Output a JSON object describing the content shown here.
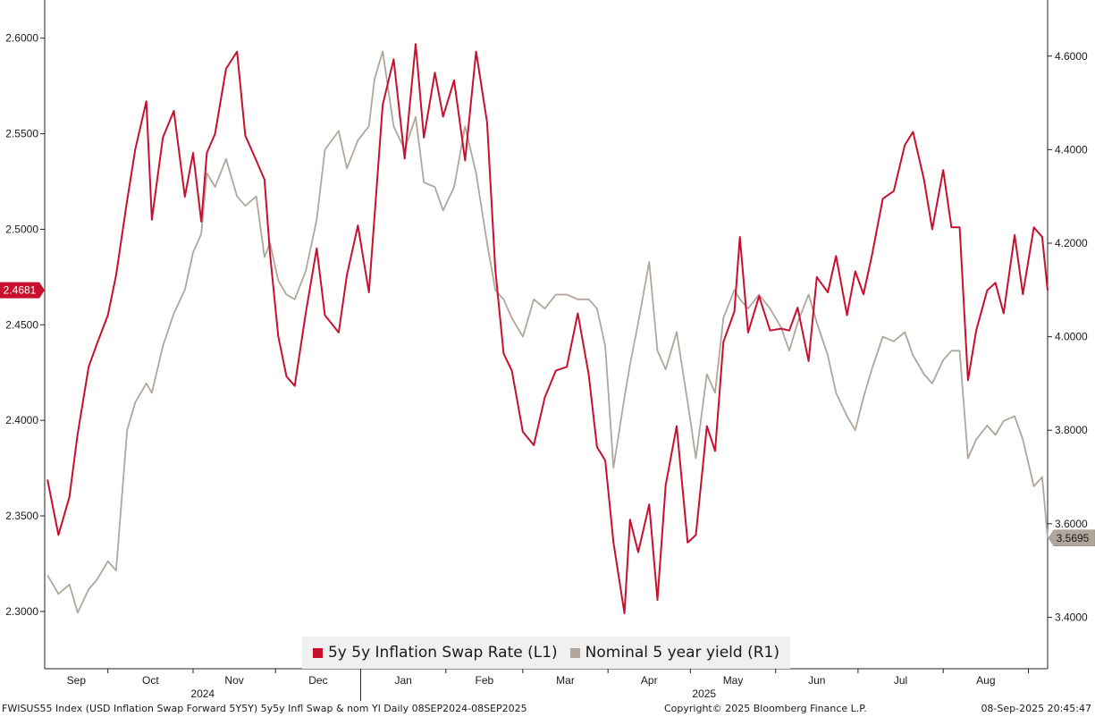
{
  "chart_data": {
    "type": "line",
    "x_range": [
      "2024-09-08",
      "2025-09-08"
    ],
    "x_month_labels": [
      "Sep",
      "Oct",
      "Nov",
      "Dec",
      "Jan",
      "Feb",
      "Mar",
      "Apr",
      "May",
      "Jun",
      "Jul",
      "Aug"
    ],
    "x_year_labels": [
      "2024",
      "2025"
    ],
    "y_left": {
      "min": 2.27,
      "max": 2.62,
      "ticks": [
        "2.6000",
        "2.5500",
        "2.5000",
        "2.4500",
        "2.4000",
        "2.3500",
        "2.3000"
      ]
    },
    "y_right": {
      "min": 3.29,
      "max": 4.72,
      "ticks": [
        "4.6000",
        "4.4000",
        "4.2000",
        "4.0000",
        "3.8000",
        "3.6000",
        "3.4000"
      ]
    },
    "series": [
      {
        "name": "5y 5y Inflation Swap Rate (L1)",
        "axis": "left",
        "color": "#c8102e",
        "last_value_label": "2.4681",
        "last_value": 2.4681,
        "points": [
          [
            "2024-09-09",
            2.369
          ],
          [
            "2024-09-13",
            2.34
          ],
          [
            "2024-09-17",
            2.36
          ],
          [
            "2024-09-20",
            2.393
          ],
          [
            "2024-09-24",
            2.428
          ],
          [
            "2024-09-27",
            2.44
          ],
          [
            "2024-10-01",
            2.455
          ],
          [
            "2024-10-04",
            2.476
          ],
          [
            "2024-10-08",
            2.515
          ],
          [
            "2024-10-11",
            2.542
          ],
          [
            "2024-10-15",
            2.567
          ],
          [
            "2024-10-17",
            2.505
          ],
          [
            "2024-10-21",
            2.548
          ],
          [
            "2024-10-25",
            2.562
          ],
          [
            "2024-10-29",
            2.517
          ],
          [
            "2024-11-01",
            2.54
          ],
          [
            "2024-11-04",
            2.504
          ],
          [
            "2024-11-06",
            2.54
          ],
          [
            "2024-11-09",
            2.55
          ],
          [
            "2024-11-13",
            2.584
          ],
          [
            "2024-11-17",
            2.593
          ],
          [
            "2024-11-20",
            2.549
          ],
          [
            "2024-11-24",
            2.536
          ],
          [
            "2024-11-27",
            2.526
          ],
          [
            "2024-11-29",
            2.487
          ],
          [
            "2024-12-02",
            2.444
          ],
          [
            "2024-12-05",
            2.423
          ],
          [
            "2024-12-08",
            2.418
          ],
          [
            "2024-12-12",
            2.456
          ],
          [
            "2024-12-16",
            2.49
          ],
          [
            "2024-12-19",
            2.455
          ],
          [
            "2024-12-24",
            2.446
          ],
          [
            "2024-12-27",
            2.476
          ],
          [
            "2024-12-31",
            2.502
          ],
          [
            "2025-01-04",
            2.467
          ],
          [
            "2025-01-06",
            2.506
          ],
          [
            "2025-01-09",
            2.565
          ],
          [
            "2025-01-13",
            2.589
          ],
          [
            "2025-01-17",
            2.537
          ],
          [
            "2025-01-21",
            2.597
          ],
          [
            "2025-01-24",
            2.548
          ],
          [
            "2025-01-28",
            2.582
          ],
          [
            "2025-01-31",
            2.559
          ],
          [
            "2025-02-04",
            2.578
          ],
          [
            "2025-02-08",
            2.536
          ],
          [
            "2025-02-12",
            2.593
          ],
          [
            "2025-02-16",
            2.556
          ],
          [
            "2025-02-19",
            2.479
          ],
          [
            "2025-02-22",
            2.435
          ],
          [
            "2025-02-25",
            2.426
          ],
          [
            "2025-03-01",
            2.394
          ],
          [
            "2025-03-05",
            2.387
          ],
          [
            "2025-03-09",
            2.412
          ],
          [
            "2025-03-13",
            2.426
          ],
          [
            "2025-03-17",
            2.428
          ],
          [
            "2025-03-21",
            2.456
          ],
          [
            "2025-03-25",
            2.424
          ],
          [
            "2025-03-28",
            2.386
          ],
          [
            "2025-03-31",
            2.379
          ],
          [
            "2025-04-03",
            2.336
          ],
          [
            "2025-04-07",
            2.299
          ],
          [
            "2025-04-09",
            2.348
          ],
          [
            "2025-04-12",
            2.331
          ],
          [
            "2025-04-16",
            2.356
          ],
          [
            "2025-04-19",
            2.306
          ],
          [
            "2025-04-22",
            2.366
          ],
          [
            "2025-04-26",
            2.397
          ],
          [
            "2025-04-30",
            2.336
          ],
          [
            "2025-05-03",
            2.34
          ],
          [
            "2025-05-07",
            2.397
          ],
          [
            "2025-05-10",
            2.384
          ],
          [
            "2025-05-13",
            2.441
          ],
          [
            "2025-05-17",
            2.457
          ],
          [
            "2025-05-19",
            2.496
          ],
          [
            "2025-05-22",
            2.446
          ],
          [
            "2025-05-26",
            2.465
          ],
          [
            "2025-05-30",
            2.447
          ],
          [
            "2025-06-03",
            2.448
          ],
          [
            "2025-06-06",
            2.447
          ],
          [
            "2025-06-09",
            2.459
          ],
          [
            "2025-06-13",
            2.431
          ],
          [
            "2025-06-16",
            2.475
          ],
          [
            "2025-06-20",
            2.467
          ],
          [
            "2025-06-23",
            2.486
          ],
          [
            "2025-06-27",
            2.455
          ],
          [
            "2025-06-30",
            2.478
          ],
          [
            "2025-07-03",
            2.466
          ],
          [
            "2025-07-06",
            2.486
          ],
          [
            "2025-07-10",
            2.516
          ],
          [
            "2025-07-14",
            2.52
          ],
          [
            "2025-07-18",
            2.544
          ],
          [
            "2025-07-21",
            2.551
          ],
          [
            "2025-07-25",
            2.526
          ],
          [
            "2025-07-28",
            2.5
          ],
          [
            "2025-08-01",
            2.531
          ],
          [
            "2025-08-04",
            2.501
          ],
          [
            "2025-08-07",
            2.501
          ],
          [
            "2025-08-10",
            2.421
          ],
          [
            "2025-08-13",
            2.447
          ],
          [
            "2025-08-17",
            2.468
          ],
          [
            "2025-08-20",
            2.472
          ],
          [
            "2025-08-23",
            2.456
          ],
          [
            "2025-08-27",
            2.497
          ],
          [
            "2025-08-30",
            2.466
          ],
          [
            "2025-09-03",
            2.501
          ],
          [
            "2025-09-06",
            2.496
          ],
          [
            "2025-09-08",
            2.468
          ]
        ]
      },
      {
        "name": "Nominal 5 year yield (R1)",
        "axis": "right",
        "color": "#b0a69b",
        "last_value_label": "3.5695",
        "last_value": 3.5695,
        "points": [
          [
            "2024-09-09",
            3.49
          ],
          [
            "2024-09-13",
            3.45
          ],
          [
            "2024-09-17",
            3.47
          ],
          [
            "2024-09-20",
            3.41
          ],
          [
            "2024-09-24",
            3.46
          ],
          [
            "2024-09-27",
            3.48
          ],
          [
            "2024-10-01",
            3.52
          ],
          [
            "2024-10-04",
            3.5
          ],
          [
            "2024-10-08",
            3.8
          ],
          [
            "2024-10-11",
            3.86
          ],
          [
            "2024-10-15",
            3.9
          ],
          [
            "2024-10-17",
            3.88
          ],
          [
            "2024-10-21",
            3.98
          ],
          [
            "2024-10-25",
            4.05
          ],
          [
            "2024-10-29",
            4.1
          ],
          [
            "2024-11-01",
            4.18
          ],
          [
            "2024-11-04",
            4.22
          ],
          [
            "2024-11-06",
            4.35
          ],
          [
            "2024-11-09",
            4.32
          ],
          [
            "2024-11-13",
            4.38
          ],
          [
            "2024-11-17",
            4.3
          ],
          [
            "2024-11-20",
            4.28
          ],
          [
            "2024-11-24",
            4.3
          ],
          [
            "2024-11-27",
            4.17
          ],
          [
            "2024-11-29",
            4.2
          ],
          [
            "2024-12-02",
            4.12
          ],
          [
            "2024-12-05",
            4.09
          ],
          [
            "2024-12-08",
            4.08
          ],
          [
            "2024-12-12",
            4.14
          ],
          [
            "2024-12-16",
            4.25
          ],
          [
            "2024-12-19",
            4.4
          ],
          [
            "2024-12-24",
            4.44
          ],
          [
            "2024-12-27",
            4.36
          ],
          [
            "2024-12-31",
            4.42
          ],
          [
            "2025-01-04",
            4.45
          ],
          [
            "2025-01-06",
            4.55
          ],
          [
            "2025-01-09",
            4.61
          ],
          [
            "2025-01-13",
            4.45
          ],
          [
            "2025-01-17",
            4.4
          ],
          [
            "2025-01-21",
            4.47
          ],
          [
            "2025-01-24",
            4.33
          ],
          [
            "2025-01-28",
            4.32
          ],
          [
            "2025-01-31",
            4.27
          ],
          [
            "2025-02-04",
            4.32
          ],
          [
            "2025-02-08",
            4.45
          ],
          [
            "2025-02-12",
            4.35
          ],
          [
            "2025-02-16",
            4.2
          ],
          [
            "2025-02-19",
            4.1
          ],
          [
            "2025-02-22",
            4.08
          ],
          [
            "2025-02-25",
            4.04
          ],
          [
            "2025-03-01",
            4.0
          ],
          [
            "2025-03-05",
            4.08
          ],
          [
            "2025-03-09",
            4.06
          ],
          [
            "2025-03-13",
            4.09
          ],
          [
            "2025-03-17",
            4.09
          ],
          [
            "2025-03-21",
            4.08
          ],
          [
            "2025-03-25",
            4.08
          ],
          [
            "2025-03-28",
            4.06
          ],
          [
            "2025-03-31",
            3.98
          ],
          [
            "2025-04-03",
            3.72
          ],
          [
            "2025-04-07",
            3.87
          ],
          [
            "2025-04-09",
            3.94
          ],
          [
            "2025-04-12",
            4.03
          ],
          [
            "2025-04-16",
            4.16
          ],
          [
            "2025-04-19",
            3.97
          ],
          [
            "2025-04-22",
            3.93
          ],
          [
            "2025-04-26",
            4.01
          ],
          [
            "2025-04-30",
            3.86
          ],
          [
            "2025-05-03",
            3.74
          ],
          [
            "2025-05-07",
            3.92
          ],
          [
            "2025-05-10",
            3.88
          ],
          [
            "2025-05-13",
            4.04
          ],
          [
            "2025-05-17",
            4.1
          ],
          [
            "2025-05-19",
            4.08
          ],
          [
            "2025-05-22",
            4.06
          ],
          [
            "2025-05-26",
            4.09
          ],
          [
            "2025-05-30",
            4.06
          ],
          [
            "2025-06-03",
            4.02
          ],
          [
            "2025-06-06",
            3.97
          ],
          [
            "2025-06-09",
            4.03
          ],
          [
            "2025-06-13",
            4.09
          ],
          [
            "2025-06-16",
            4.03
          ],
          [
            "2025-06-20",
            3.96
          ],
          [
            "2025-06-23",
            3.88
          ],
          [
            "2025-06-27",
            3.83
          ],
          [
            "2025-06-30",
            3.8
          ],
          [
            "2025-07-03",
            3.87
          ],
          [
            "2025-07-06",
            3.93
          ],
          [
            "2025-07-10",
            4.0
          ],
          [
            "2025-07-14",
            3.99
          ],
          [
            "2025-07-18",
            4.01
          ],
          [
            "2025-07-21",
            3.96
          ],
          [
            "2025-07-25",
            3.92
          ],
          [
            "2025-07-28",
            3.9
          ],
          [
            "2025-08-01",
            3.95
          ],
          [
            "2025-08-04",
            3.97
          ],
          [
            "2025-08-07",
            3.97
          ],
          [
            "2025-08-10",
            3.74
          ],
          [
            "2025-08-13",
            3.78
          ],
          [
            "2025-08-17",
            3.81
          ],
          [
            "2025-08-20",
            3.79
          ],
          [
            "2025-08-23",
            3.82
          ],
          [
            "2025-08-27",
            3.83
          ],
          [
            "2025-08-30",
            3.78
          ],
          [
            "2025-09-03",
            3.68
          ],
          [
            "2025-09-06",
            3.7
          ],
          [
            "2025-09-08",
            3.57
          ]
        ]
      }
    ],
    "grid": false,
    "legend_position": "bottom-center"
  },
  "footer": {
    "left": "FWISUS55 Index (USD Inflation Swap Forward 5Y5Y) 5y5y Infl Swap & nom Yl  Daily 08SEP2024-08SEP2025",
    "center": "Copyright© 2025 Bloomberg Finance L.P.",
    "right": "08-Sep-2025 20:45:47"
  }
}
